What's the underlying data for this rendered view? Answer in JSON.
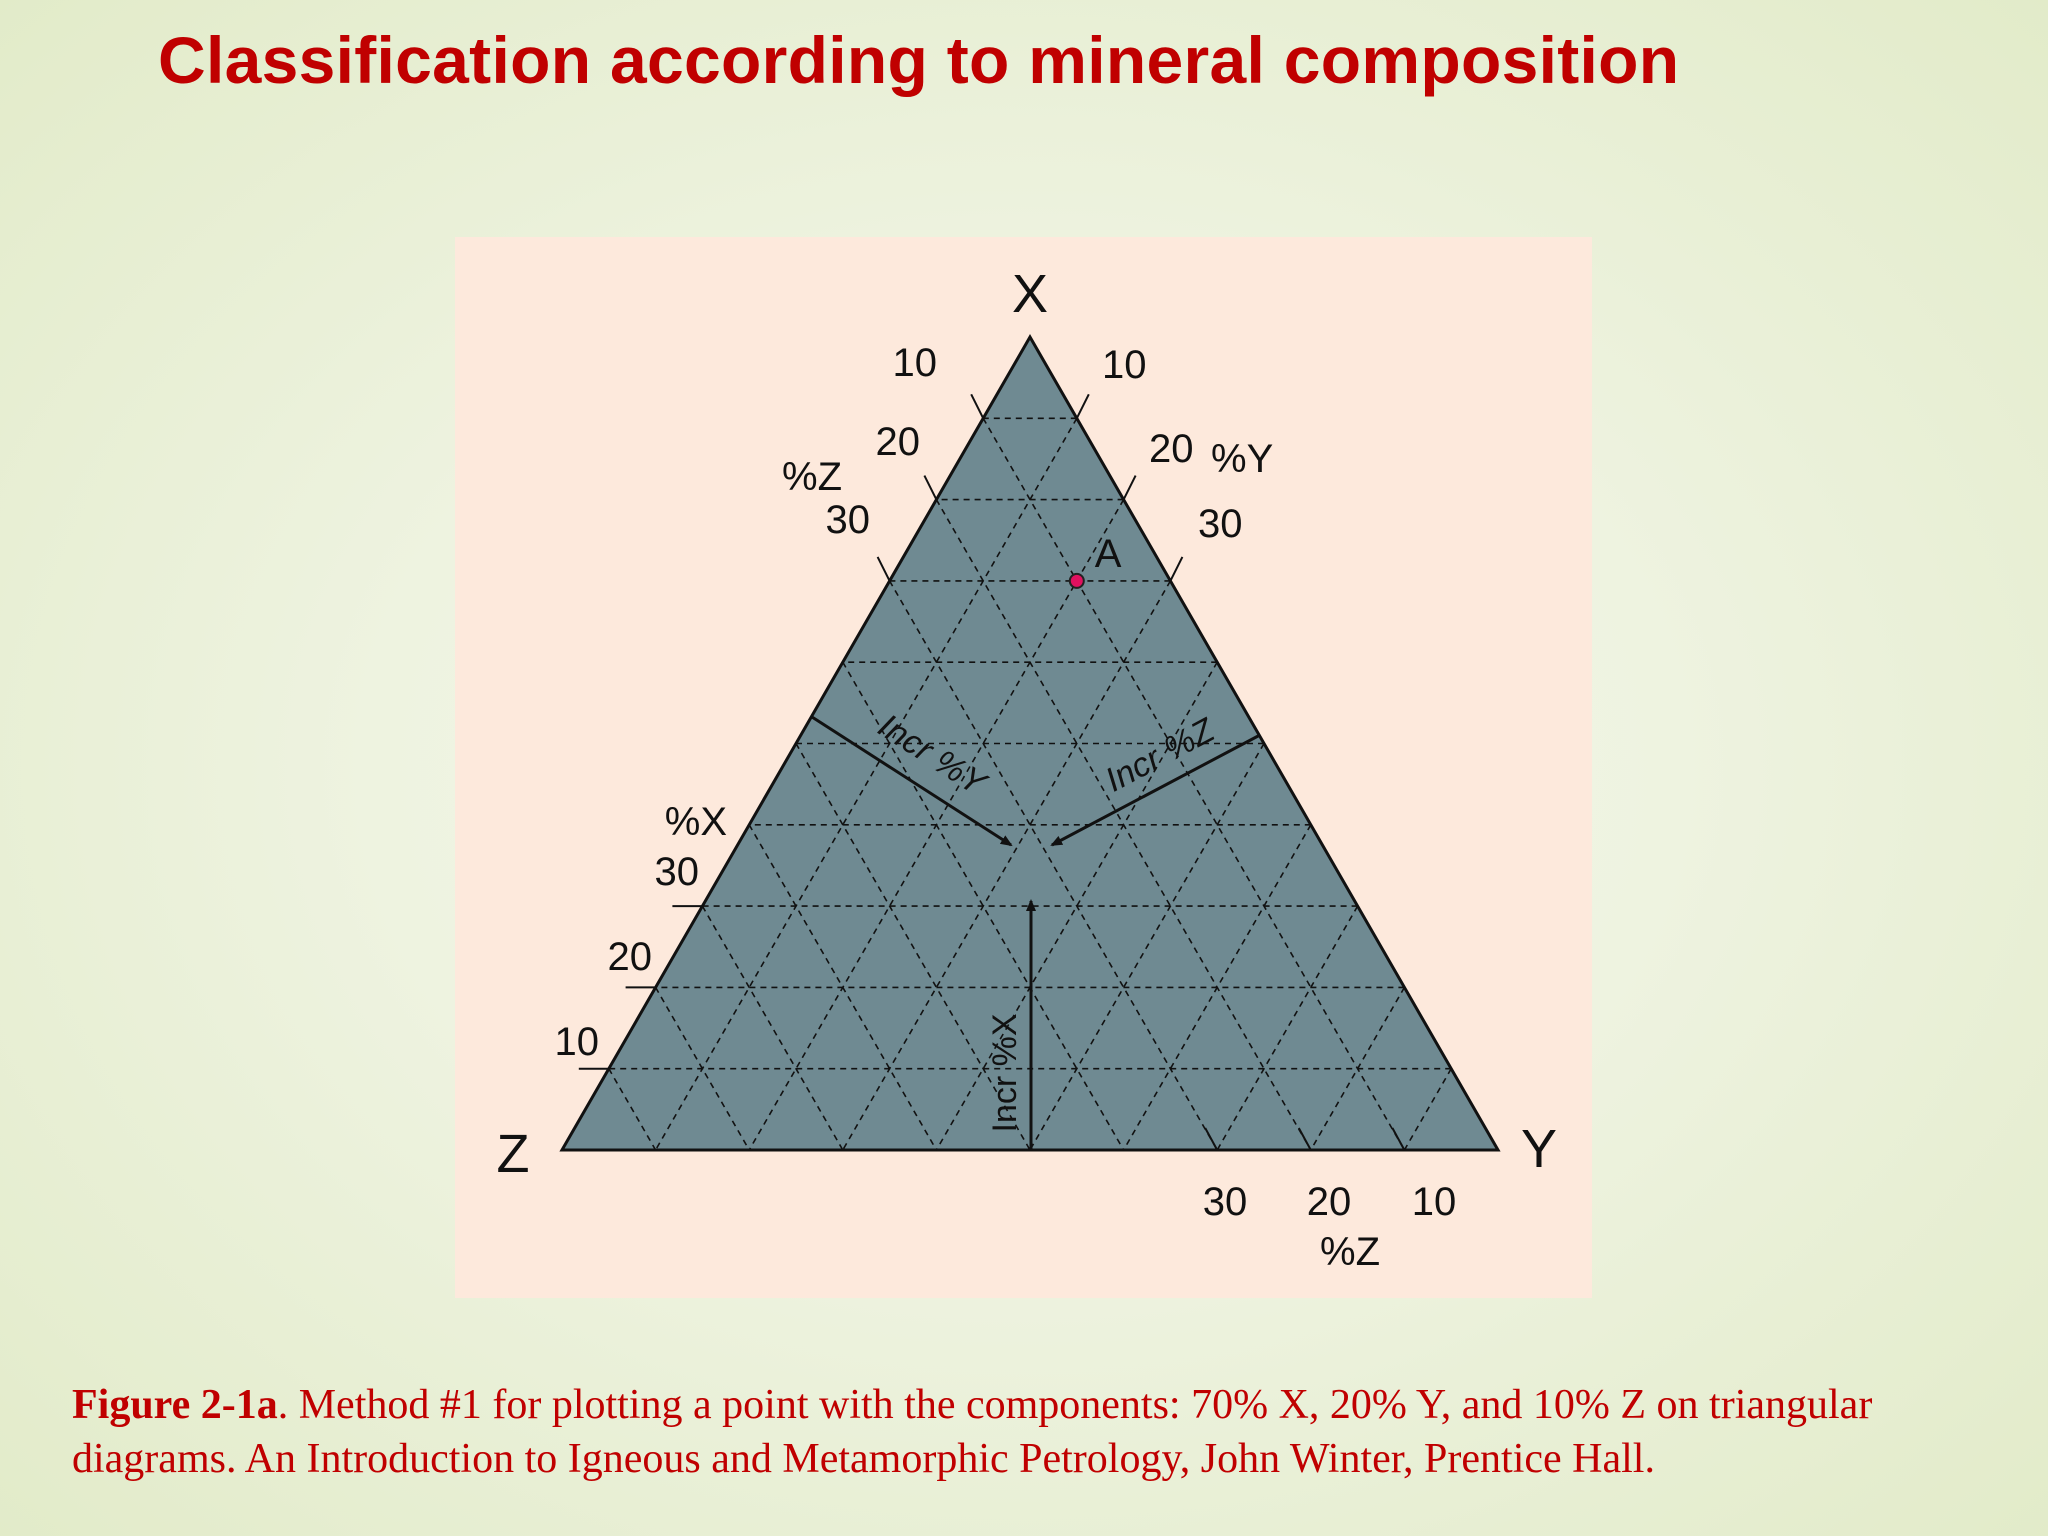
{
  "slide": {
    "title": "Classification according to mineral composition"
  },
  "diagram": {
    "vertices": {
      "top": "X",
      "right": "Y",
      "left": "Z"
    },
    "fill_color": "#6f8a92",
    "background_color": "#fde9dc",
    "point_color": "#e0115f",
    "point": {
      "label": "A",
      "X": 70,
      "Y": 20,
      "Z": 10
    },
    "ticks": {
      "left_top_edge": {
        "title": "%Z",
        "labels": [
          "10",
          "20",
          "30"
        ]
      },
      "right_top_edge": {
        "title": "%Y",
        "labels": [
          "10",
          "20",
          "30"
        ]
      },
      "left_edge": {
        "title": "%X",
        "labels": [
          "10",
          "20",
          "30"
        ]
      },
      "bottom_edge": {
        "title": "%Z",
        "labels": [
          "30",
          "20",
          "10"
        ]
      }
    },
    "arrows": {
      "incr_y": "Incr %Y",
      "incr_z": "Incr %Z",
      "incr_x": "Incr %X"
    }
  },
  "caption": {
    "bold": "Figure 2-1a",
    "text": ". Method #1 for plotting a point with the components: 70% X, 20% Y, and 10% Z on triangular diagrams. An Introduction to Igneous and Metamorphic Petrology, John Winter, Prentice Hall."
  }
}
